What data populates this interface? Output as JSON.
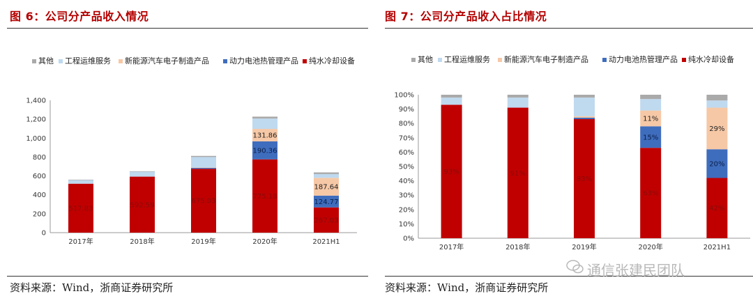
{
  "colors": {
    "other": "#aaaaaa",
    "engineering": "#bfd9ef",
    "nev": "#f6c8a6",
    "battery": "#3f6dbd",
    "chiller": "#c00000",
    "title": "#b40000"
  },
  "left": {
    "title": "图 6：公司分产品收入情况",
    "source": "资料来源：Wind，浙商证券研究所"
  },
  "right": {
    "title": "图 7：公司分产品收入占比情况",
    "source": "资料来源：Wind，浙商证券研究所"
  },
  "watermark": "通信张建民团队",
  "chart_data": [
    {
      "type": "bar",
      "stacked": true,
      "title": "公司分产品收入情况",
      "categories": [
        "2017年",
        "2018年",
        "2019年",
        "2020年",
        "2021H1"
      ],
      "ylim": [
        0,
        1400
      ],
      "yticks": [
        "0",
        "200",
        "400",
        "600",
        "800",
        "1,000",
        "1,200",
        "1,400"
      ],
      "legend": [
        "其他",
        "工程运维服务",
        "新能源汽车电子制造产品",
        "动力电池热管理产品",
        "纯水冷却设备"
      ],
      "series": [
        {
          "name": "纯水冷却设备",
          "color": "#c00000",
          "values": [
            517.83,
            592.59,
            675.03,
            775.18,
            267.03
          ],
          "labels": [
            "517.83",
            "592.59",
            "675.03",
            "775.18",
            "267.03"
          ]
        },
        {
          "name": "动力电池热管理产品",
          "color": "#3f6dbd",
          "values": [
            0,
            0,
            10,
            190.36,
            124.77
          ],
          "labels": [
            "",
            "",
            "",
            "190.36",
            "124.77"
          ]
        },
        {
          "name": "新能源汽车电子制造产品",
          "color": "#f6c8a6",
          "values": [
            0,
            0,
            5,
            131.86,
            187.64
          ],
          "labels": [
            "",
            "",
            "",
            "131.86",
            "187.64"
          ]
        },
        {
          "name": "工程运维服务",
          "color": "#bfd9ef",
          "values": [
            38,
            52,
            110,
            110,
            40
          ],
          "labels": [
            "",
            "",
            "",
            "",
            ""
          ]
        },
        {
          "name": "其他",
          "color": "#aaaaaa",
          "values": [
            5,
            5,
            12,
            20,
            18
          ],
          "labels": [
            "",
            "",
            "",
            "",
            ""
          ]
        }
      ]
    },
    {
      "type": "bar",
      "stacked": true,
      "title": "公司分产品收入占比情况",
      "categories": [
        "2017年",
        "2018年",
        "2019年",
        "2020年",
        "2021H1"
      ],
      "ylim": [
        0,
        100
      ],
      "yticks": [
        "0%",
        "10%",
        "20%",
        "30%",
        "40%",
        "50%",
        "60%",
        "70%",
        "80%",
        "90%",
        "100%"
      ],
      "legend": [
        "其他",
        "工程运维服务",
        "新能源汽车电子制造产品",
        "动力电池热管理产品",
        "纯水冷却设备"
      ],
      "series": [
        {
          "name": "纯水冷却设备",
          "color": "#c00000",
          "values": [
            93,
            91,
            83,
            63,
            42
          ],
          "labels": [
            "93%",
            "91%",
            "83%",
            "63%",
            "42%"
          ]
        },
        {
          "name": "动力电池热管理产品",
          "color": "#3f6dbd",
          "values": [
            0,
            0,
            1,
            15,
            20
          ],
          "labels": [
            "",
            "",
            "",
            "15%",
            "20%"
          ]
        },
        {
          "name": "新能源汽车电子制造产品",
          "color": "#f6c8a6",
          "values": [
            0,
            0,
            1,
            11,
            29
          ],
          "labels": [
            "",
            "",
            "",
            "11%",
            "29%"
          ]
        },
        {
          "name": "工程运维服务",
          "color": "#bfd9ef",
          "values": [
            5,
            7,
            13,
            8,
            5
          ],
          "labels": [
            "",
            "",
            "",
            "",
            ""
          ]
        },
        {
          "name": "其他",
          "color": "#aaaaaa",
          "values": [
            2,
            2,
            2,
            3,
            4
          ],
          "labels": [
            "",
            "",
            "",
            "",
            ""
          ]
        }
      ]
    }
  ]
}
